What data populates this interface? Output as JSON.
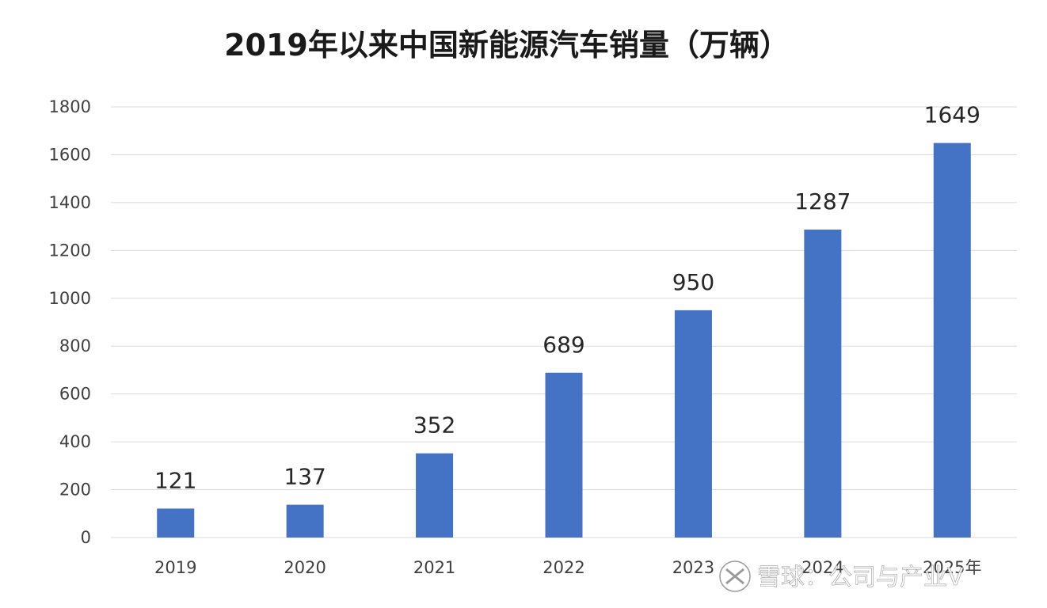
{
  "watermark": {
    "text": "雪球：公司与产业V",
    "icon": "xueqiu-logo-icon"
  },
  "chart_data": {
    "type": "bar",
    "title": "2019年以来中国新能源汽车销量（万辆）",
    "categories": [
      "2019",
      "2020",
      "2021",
      "2022",
      "2023",
      "2024",
      "2025年"
    ],
    "values": [
      121,
      137,
      352,
      689,
      950,
      1287,
      1649
    ],
    "data_labels": [
      "121",
      "137",
      "352",
      "689",
      "950",
      "1287",
      "1649"
    ],
    "y_ticks": [
      "0",
      "200",
      "400",
      "600",
      "800",
      "1000",
      "1200",
      "1400",
      "1600",
      "1800"
    ],
    "ylim": [
      0,
      1800
    ],
    "grid": true,
    "legend": "none",
    "bar_color": "#4472C4",
    "grid_color": "#d9d9d9"
  }
}
